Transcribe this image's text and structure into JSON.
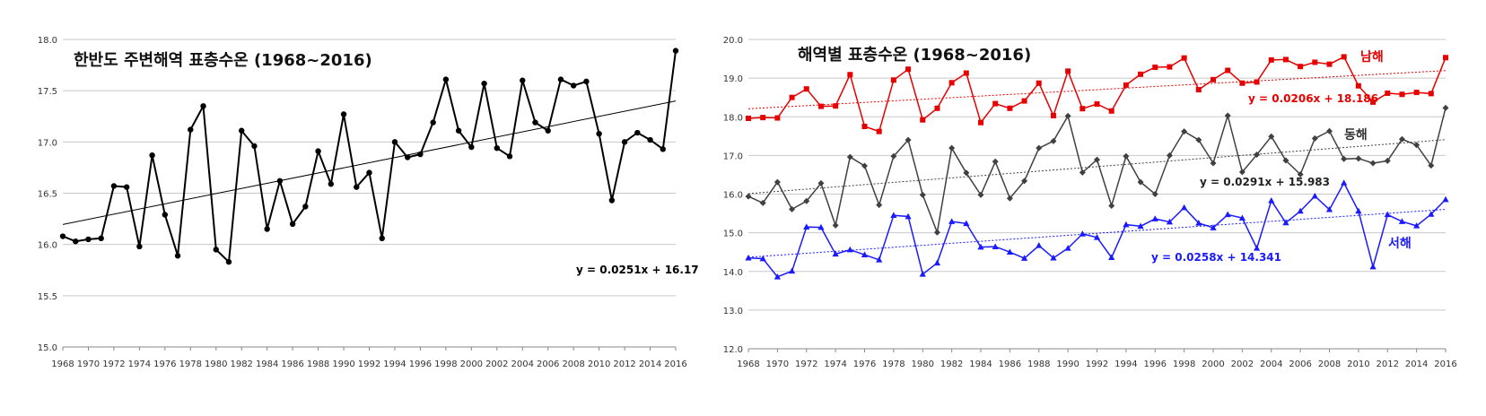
{
  "chart_data": [
    {
      "type": "line",
      "title": "한반도 주변해역 표층수온 (1968~2016)",
      "xlabel": "",
      "ylabel": "",
      "x": [
        1968,
        1969,
        1970,
        1971,
        1972,
        1973,
        1974,
        1975,
        1976,
        1977,
        1978,
        1979,
        1980,
        1981,
        1982,
        1983,
        1984,
        1985,
        1986,
        1987,
        1988,
        1989,
        1990,
        1991,
        1992,
        1993,
        1994,
        1995,
        1996,
        1997,
        1998,
        1999,
        2000,
        2001,
        2002,
        2003,
        2004,
        2005,
        2006,
        2007,
        2008,
        2009,
        2010,
        2011,
        2012,
        2013,
        2014,
        2015,
        2016
      ],
      "x_ticks": [
        "1968",
        "1970",
        "1972",
        "1974",
        "1976",
        "1978",
        "1980",
        "1982",
        "1984",
        "1986",
        "1988",
        "1990",
        "1992",
        "1994",
        "1996",
        "1998",
        "2000",
        "2002",
        "2004",
        "2006",
        "2008",
        "2010",
        "2012",
        "2014",
        "2016"
      ],
      "ylim": [
        15.0,
        18.0
      ],
      "y_ticks": [
        "15.0",
        "15.5",
        "16.0",
        "16.5",
        "17.0",
        "17.5",
        "18.0"
      ],
      "grid": true,
      "series": [
        {
          "values": [
            16.08,
            16.03,
            16.05,
            16.06,
            16.57,
            16.56,
            15.98,
            16.87,
            16.29,
            15.89,
            17.12,
            17.35,
            15.95,
            15.83,
            17.11,
            16.96,
            16.15,
            16.62,
            16.2,
            16.37,
            16.91,
            16.59,
            17.27,
            16.56,
            16.7,
            16.06,
            17.0,
            16.85,
            16.88,
            17.19,
            17.61,
            17.11,
            16.95,
            17.57,
            16.94,
            16.86,
            17.6,
            17.19,
            17.11,
            17.61,
            17.55,
            17.59,
            17.08,
            16.43,
            17.0,
            17.09,
            17.02,
            16.93,
            17.89
          ],
          "color": "#000000",
          "marker": "circle",
          "trend": {
            "slope": 0.0251,
            "intercept": 16.17,
            "label": "y = 0.0251x + 16.17"
          }
        }
      ]
    },
    {
      "type": "line",
      "title": "해역별 표층수온 (1968~2016)",
      "xlabel": "",
      "ylabel": "",
      "x": [
        1968,
        1969,
        1970,
        1971,
        1972,
        1973,
        1974,
        1975,
        1976,
        1977,
        1978,
        1979,
        1980,
        1981,
        1982,
        1983,
        1984,
        1985,
        1986,
        1987,
        1988,
        1989,
        1990,
        1991,
        1992,
        1993,
        1994,
        1995,
        1996,
        1997,
        1998,
        1999,
        2000,
        2001,
        2002,
        2003,
        2004,
        2005,
        2006,
        2007,
        2008,
        2009,
        2010,
        2011,
        2012,
        2013,
        2014,
        2015,
        2016
      ],
      "x_ticks": [
        "1968",
        "1970",
        "1972",
        "1974",
        "1976",
        "1978",
        "1980",
        "1982",
        "1984",
        "1986",
        "1988",
        "1990",
        "1992",
        "1994",
        "1996",
        "1998",
        "2000",
        "2002",
        "2004",
        "2006",
        "2008",
        "2010",
        "2012",
        "2014",
        "2016"
      ],
      "ylim": [
        12.0,
        20.0
      ],
      "y_ticks": [
        "12.0",
        "13.0",
        "14.0",
        "15.0",
        "16.0",
        "17.0",
        "18.0",
        "19.0",
        "20.0"
      ],
      "grid": true,
      "series": [
        {
          "name": "남해",
          "color": "#e60000",
          "marker": "square",
          "values": [
            17.96,
            17.98,
            17.97,
            18.5,
            18.72,
            18.27,
            18.28,
            19.09,
            17.75,
            17.62,
            18.95,
            19.23,
            17.92,
            18.22,
            18.88,
            19.13,
            17.85,
            18.34,
            18.22,
            18.41,
            18.87,
            18.03,
            19.18,
            18.21,
            18.33,
            18.15,
            18.82,
            19.1,
            19.28,
            19.29,
            19.52,
            18.7,
            18.96,
            19.2,
            18.87,
            18.9,
            19.47,
            19.48,
            19.3,
            19.41,
            19.36,
            19.55,
            18.8,
            18.38,
            18.61,
            18.58,
            18.63,
            18.6,
            19.53
          ],
          "trend": {
            "slope": 0.0206,
            "intercept": 18.186,
            "label": "y = 0.0206x + 18.186"
          }
        },
        {
          "name": "동해",
          "color": "#404040",
          "marker": "diamond",
          "values": [
            15.94,
            15.77,
            16.31,
            15.61,
            15.82,
            16.28,
            15.19,
            16.96,
            16.73,
            15.72,
            16.98,
            17.4,
            15.98,
            15.01,
            17.19,
            16.55,
            15.98,
            16.84,
            15.89,
            16.34,
            17.19,
            17.37,
            18.02,
            16.56,
            16.89,
            15.7,
            16.98,
            16.31,
            16.0,
            17.0,
            17.62,
            17.4,
            16.8,
            18.03,
            16.57,
            17.02,
            17.49,
            16.87,
            16.51,
            17.44,
            17.63,
            16.91,
            16.92,
            16.8,
            16.86,
            17.42,
            17.27,
            16.74,
            18.23
          ],
          "trend": {
            "slope": 0.0291,
            "intercept": 15.983,
            "label": "y = 0.0291x + 15.983"
          }
        },
        {
          "name": "서해",
          "color": "#1a1aff",
          "marker": "triangle",
          "values": [
            14.35,
            14.33,
            13.86,
            14.01,
            15.15,
            15.14,
            14.45,
            14.56,
            14.43,
            14.3,
            15.45,
            15.42,
            13.93,
            14.22,
            15.29,
            15.24,
            14.63,
            14.64,
            14.5,
            14.34,
            14.67,
            14.35,
            14.6,
            14.97,
            14.88,
            14.36,
            15.21,
            15.17,
            15.36,
            15.28,
            15.65,
            15.25,
            15.13,
            15.47,
            15.38,
            14.6,
            15.83,
            15.26,
            15.56,
            15.95,
            15.6,
            16.29,
            15.56,
            14.12,
            15.47,
            15.29,
            15.18,
            15.48,
            15.86
          ],
          "trend": {
            "slope": 0.0258,
            "intercept": 14.341,
            "label": "y = 0.0258x + 14.341"
          }
        }
      ]
    }
  ]
}
